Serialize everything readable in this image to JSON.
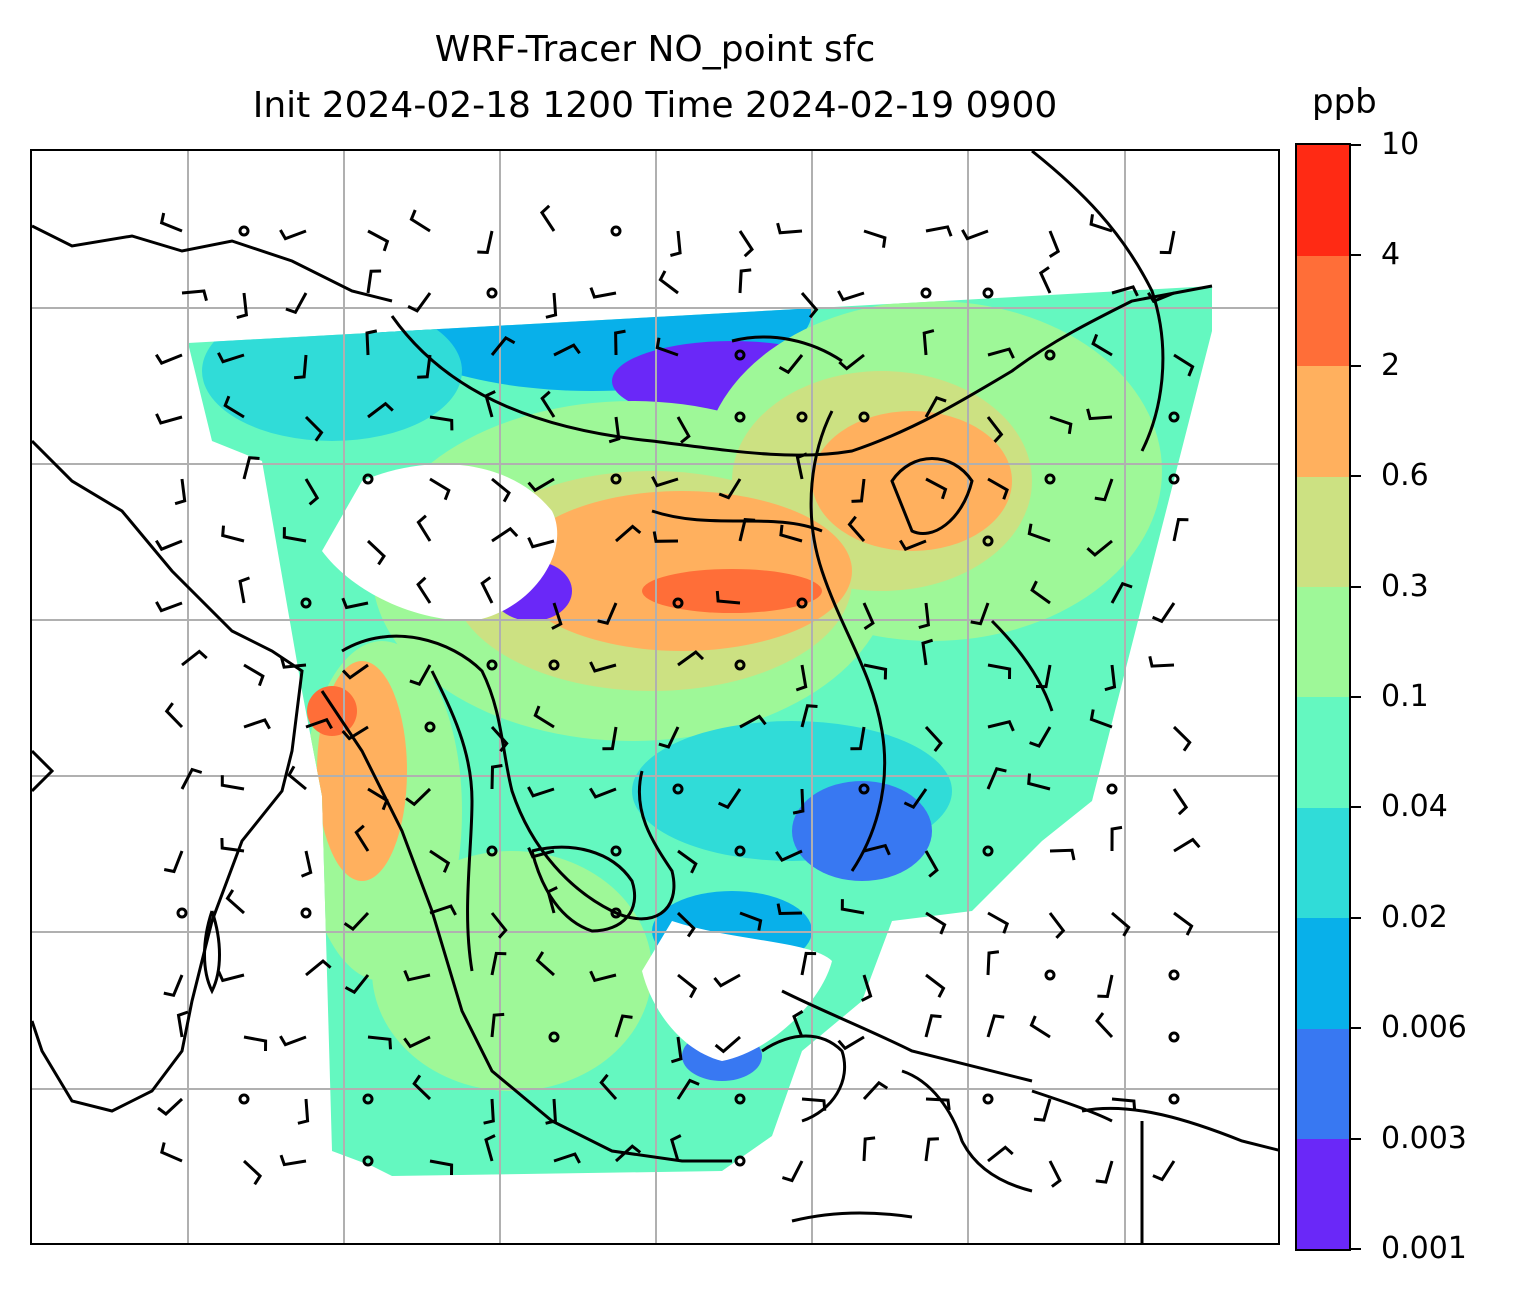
{
  "chart_data": {
    "type": "heatmap",
    "title": "WRF-Tracer NO_point sfc",
    "subtitle": "Init 2024-02-18 1200 Time 2024-02-19 0900",
    "colorbar": {
      "units": "ppb",
      "levels": [
        "0.001",
        "0.003",
        "0.006",
        "0.02",
        "0.04",
        "0.1",
        "0.3",
        "0.6",
        "2",
        "4",
        "10"
      ],
      "colors": [
        "#6a28f8",
        "#3878f2",
        "#08b0ea",
        "#30dcd8",
        "#64f8c0",
        "#9ef898",
        "#cce182",
        "#ffb05e",
        "#ff6e38",
        "#ff2a14"
      ]
    },
    "overlays": [
      "coastlines",
      "country borders",
      "lat-lon gridlines",
      "wind barbs"
    ],
    "grid": true
  }
}
